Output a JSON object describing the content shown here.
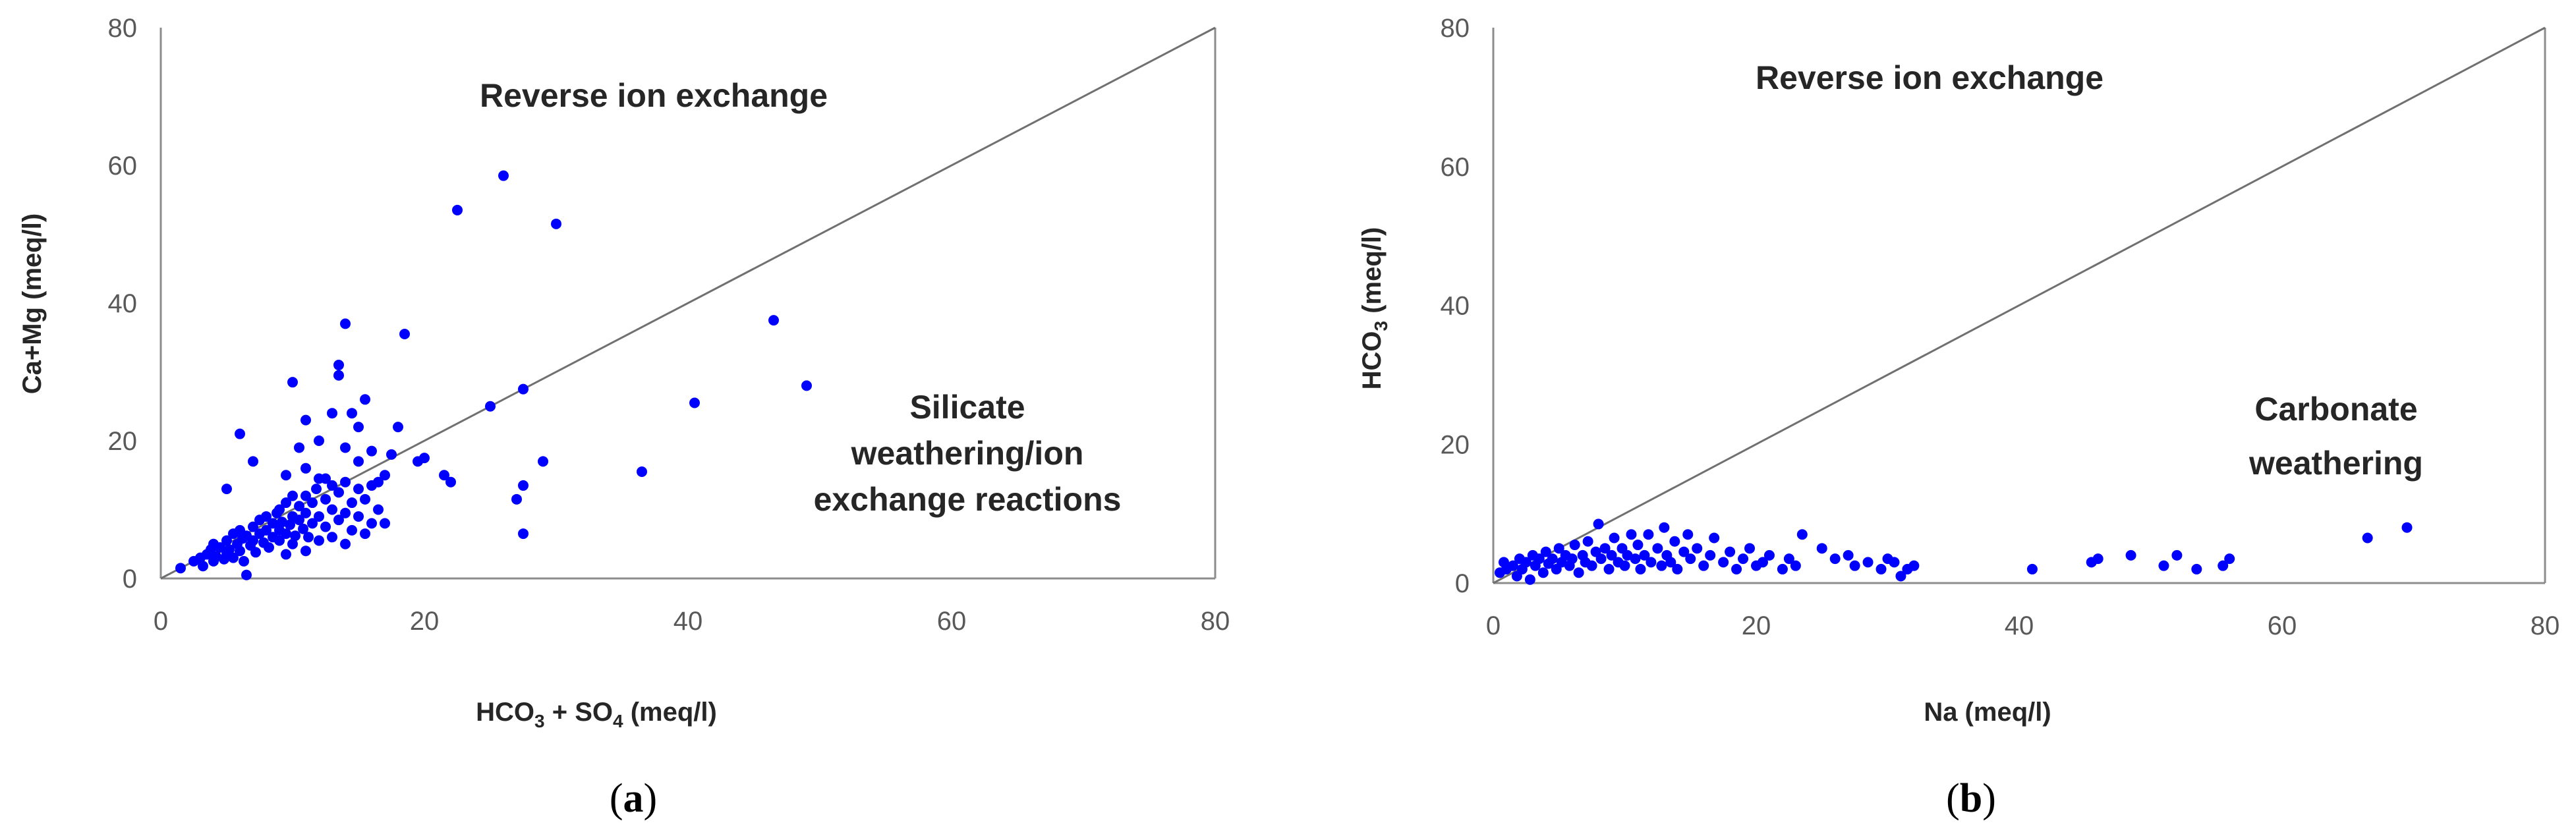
{
  "chart_data": [
    {
      "type": "scatter",
      "panel": "a",
      "xlabel": {
        "main": "HCO",
        "sub1": "3",
        "mid": " + SO",
        "sub2": "4",
        "tail": " (meq/l)"
      },
      "ylabel": "Ca+Mg (meq/l)",
      "xlim": [
        0,
        80
      ],
      "ylim": [
        0,
        80
      ],
      "x_ticks": [
        0,
        20,
        40,
        60,
        80
      ],
      "y_ticks": [
        0,
        20,
        40,
        60,
        80
      ],
      "ref_line": "1:1",
      "point_color": "#0000ff",
      "regions": {
        "upper": [
          "Reverse ion exchange"
        ],
        "lower": [
          "Silicate",
          "weathering/ion",
          "exchange reactions"
        ]
      },
      "caption": {
        "open": "(",
        "letter": "a",
        "close": ")"
      },
      "points": [
        [
          1.5,
          1.5
        ],
        [
          2.5,
          2.5
        ],
        [
          3,
          3
        ],
        [
          3.2,
          1.8
        ],
        [
          3.5,
          3.5
        ],
        [
          3.8,
          4.2
        ],
        [
          4,
          2.5
        ],
        [
          4,
          5
        ],
        [
          4.2,
          3.2
        ],
        [
          4.5,
          4.5
        ],
        [
          4.8,
          2.8
        ],
        [
          5,
          3.5
        ],
        [
          5,
          5.5
        ],
        [
          5.2,
          4.2
        ],
        [
          5.5,
          6.5
        ],
        [
          5.5,
          3
        ],
        [
          5.8,
          5
        ],
        [
          6,
          4
        ],
        [
          6,
          7
        ],
        [
          6.2,
          5.8
        ],
        [
          6.3,
          2.5
        ],
        [
          6.5,
          6.2
        ],
        [
          6.5,
          0.5
        ],
        [
          6.8,
          4.8
        ],
        [
          7,
          5.5
        ],
        [
          7,
          7.5
        ],
        [
          7.2,
          3.8
        ],
        [
          7.5,
          6.5
        ],
        [
          7.5,
          8.5
        ],
        [
          7.8,
          5.2
        ],
        [
          8,
          7
        ],
        [
          8,
          9
        ],
        [
          8.2,
          4.5
        ],
        [
          8.5,
          6
        ],
        [
          8.5,
          8
        ],
        [
          8.8,
          9.5
        ],
        [
          9,
          5.5
        ],
        [
          9,
          7
        ],
        [
          9,
          10
        ],
        [
          9.2,
          8.2
        ],
        [
          9.5,
          6.5
        ],
        [
          9.5,
          11
        ],
        [
          9.5,
          3.5
        ],
        [
          9.8,
          7.8
        ],
        [
          10,
          5
        ],
        [
          10,
          9
        ],
        [
          10,
          12
        ],
        [
          10.2,
          6.2
        ],
        [
          10.5,
          8.5
        ],
        [
          10.5,
          10.5
        ],
        [
          10.8,
          7.2
        ],
        [
          11,
          4
        ],
        [
          11,
          9.5
        ],
        [
          11,
          12
        ],
        [
          11.2,
          6
        ],
        [
          11.5,
          11
        ],
        [
          11.5,
          8
        ],
        [
          11.8,
          13
        ],
        [
          12,
          5.5
        ],
        [
          12,
          9
        ],
        [
          12,
          14.5
        ],
        [
          12.5,
          7.5
        ],
        [
          12.5,
          11.5
        ],
        [
          13,
          6
        ],
        [
          13,
          10
        ],
        [
          13,
          13.5
        ],
        [
          13.5,
          8.5
        ],
        [
          13.5,
          12.5
        ],
        [
          14,
          5
        ],
        [
          14,
          9.5
        ],
        [
          14,
          14
        ],
        [
          14.5,
          7
        ],
        [
          14.5,
          11
        ],
        [
          15,
          13
        ],
        [
          15,
          9
        ],
        [
          15.5,
          6.5
        ],
        [
          15.5,
          11.5
        ],
        [
          16,
          8
        ],
        [
          16,
          13.5
        ],
        [
          16.5,
          10
        ],
        [
          17,
          8
        ],
        [
          5,
          13
        ],
        [
          6,
          21
        ],
        [
          7,
          17
        ],
        [
          9.5,
          15
        ],
        [
          10,
          28.5
        ],
        [
          10.5,
          19
        ],
        [
          11,
          23
        ],
        [
          11,
          16
        ],
        [
          12,
          20
        ],
        [
          12.5,
          14.5
        ],
        [
          13,
          24
        ],
        [
          13.5,
          31
        ],
        [
          13.5,
          29.5
        ],
        [
          14,
          37
        ],
        [
          14,
          19
        ],
        [
          14.5,
          24
        ],
        [
          15,
          22
        ],
        [
          15,
          17
        ],
        [
          15.5,
          26
        ],
        [
          16,
          18.5
        ],
        [
          16.5,
          14
        ],
        [
          17,
          15
        ],
        [
          17.5,
          18
        ],
        [
          18,
          22
        ],
        [
          18.5,
          35.5
        ],
        [
          19.5,
          17
        ],
        [
          20,
          17.5
        ],
        [
          21.5,
          15
        ],
        [
          22,
          14
        ],
        [
          22.5,
          53.5
        ],
        [
          25,
          25
        ],
        [
          26,
          58.5
        ],
        [
          27,
          11.5
        ],
        [
          27.5,
          27.5
        ],
        [
          27.5,
          13.5
        ],
        [
          27.5,
          6.5
        ],
        [
          29,
          17
        ],
        [
          30,
          51.5
        ],
        [
          36.5,
          15.5
        ],
        [
          40.5,
          25.5
        ],
        [
          46.5,
          37.5
        ],
        [
          49,
          28
        ]
      ]
    },
    {
      "type": "scatter",
      "panel": "b",
      "xlabel": "Na (meq/l)",
      "ylabel": {
        "main": "HCO",
        "sub": "3",
        "tail": " (meq/l)"
      },
      "xlim": [
        0,
        80
      ],
      "ylim": [
        0,
        80
      ],
      "x_ticks": [
        0,
        20,
        40,
        60,
        80
      ],
      "y_ticks": [
        0,
        20,
        40,
        60,
        80
      ],
      "ref_line": "1:1",
      "point_color": "#0000ff",
      "regions": {
        "upper": [
          "Reverse ion exchange"
        ],
        "lower": [
          "Carbonate",
          "weathering"
        ]
      },
      "caption": {
        "open": "(",
        "letter": "b",
        "close": ")"
      },
      "points": [
        [
          0.5,
          1.5
        ],
        [
          0.8,
          3
        ],
        [
          1,
          2
        ],
        [
          1.5,
          2.5
        ],
        [
          1.8,
          1
        ],
        [
          2,
          3.5
        ],
        [
          2.2,
          2
        ],
        [
          2.5,
          3
        ],
        [
          2.8,
          0.5
        ],
        [
          3,
          4
        ],
        [
          3.2,
          2.5
        ],
        [
          3.5,
          3.5
        ],
        [
          3.8,
          1.5
        ],
        [
          4,
          4.5
        ],
        [
          4.2,
          2.8
        ],
        [
          4.5,
          3.5
        ],
        [
          4.8,
          2
        ],
        [
          5,
          5
        ],
        [
          5.2,
          3
        ],
        [
          5.5,
          4
        ],
        [
          5.8,
          2.5
        ],
        [
          6,
          3.5
        ],
        [
          6.2,
          5.5
        ],
        [
          6.5,
          1.5
        ],
        [
          6.8,
          4
        ],
        [
          7,
          3
        ],
        [
          7.2,
          6
        ],
        [
          7.5,
          2.5
        ],
        [
          7.8,
          4.5
        ],
        [
          8,
          8.5
        ],
        [
          8.2,
          3.5
        ],
        [
          8.5,
          5
        ],
        [
          8.8,
          2
        ],
        [
          9,
          4
        ],
        [
          9.2,
          6.5
        ],
        [
          9.5,
          3
        ],
        [
          9.8,
          5
        ],
        [
          10,
          2.5
        ],
        [
          10.2,
          4
        ],
        [
          10.5,
          7
        ],
        [
          10.8,
          3.5
        ],
        [
          11,
          5.5
        ],
        [
          11.2,
          2
        ],
        [
          11.5,
          4
        ],
        [
          11.8,
          7
        ],
        [
          12,
          3
        ],
        [
          12.5,
          5
        ],
        [
          12.8,
          2.5
        ],
        [
          13,
          8
        ],
        [
          13.2,
          4
        ],
        [
          13.5,
          3
        ],
        [
          13.8,
          6
        ],
        [
          14,
          2
        ],
        [
          14.5,
          4.5
        ],
        [
          14.8,
          7
        ],
        [
          15,
          3.5
        ],
        [
          15.5,
          5
        ],
        [
          16,
          2.5
        ],
        [
          16.5,
          4
        ],
        [
          16.8,
          6.5
        ],
        [
          17.5,
          3
        ],
        [
          18,
          4.5
        ],
        [
          18.5,
          2
        ],
        [
          19,
          3.5
        ],
        [
          19.5,
          5
        ],
        [
          20,
          2.5
        ],
        [
          20.5,
          3
        ],
        [
          21,
          4
        ],
        [
          22,
          2
        ],
        [
          22.5,
          3.5
        ],
        [
          23,
          2.5
        ],
        [
          23.5,
          7
        ],
        [
          25,
          5
        ],
        [
          26,
          3.5
        ],
        [
          27,
          4
        ],
        [
          27.5,
          2.5
        ],
        [
          28.5,
          3
        ],
        [
          29.5,
          2
        ],
        [
          30,
          3.5
        ],
        [
          30.5,
          3
        ],
        [
          31,
          1
        ],
        [
          31.5,
          2
        ],
        [
          32,
          2.5
        ],
        [
          41,
          2
        ],
        [
          45.5,
          3
        ],
        [
          46,
          3.5
        ],
        [
          48.5,
          4
        ],
        [
          51,
          2.5
        ],
        [
          52,
          4
        ],
        [
          53.5,
          2
        ],
        [
          55.5,
          2.5
        ],
        [
          56,
          3.5
        ],
        [
          66.5,
          6.5
        ],
        [
          69.5,
          8
        ]
      ]
    }
  ]
}
